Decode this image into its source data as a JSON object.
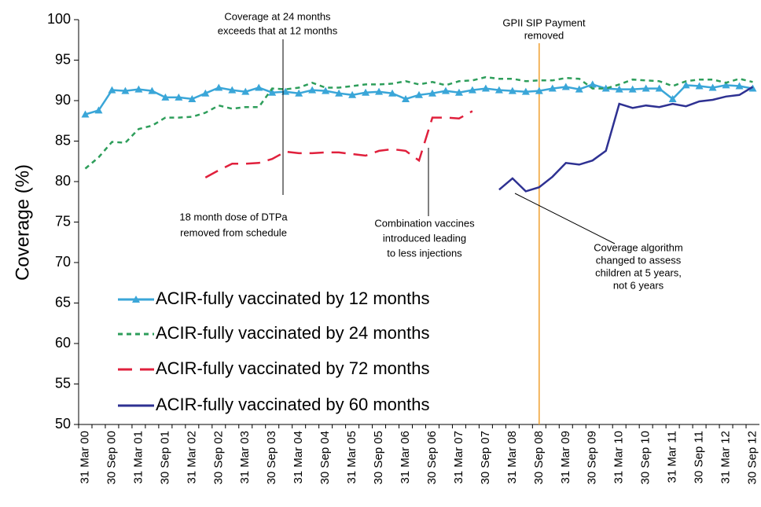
{
  "chart_data": {
    "type": "line",
    "y_label": "Coverage (%)",
    "ylim": [
      50,
      100
    ],
    "yticks": [
      50,
      55,
      60,
      65,
      70,
      75,
      80,
      85,
      90,
      95,
      100
    ],
    "grid": false,
    "legend": "lower left",
    "categories": [
      "31 Mar 00",
      null,
      "30 Sep 00",
      null,
      "31 Mar 01",
      null,
      "30 Sep 01",
      null,
      "31 Mar 02",
      null,
      "30 Sep 02",
      null,
      "31 Mar 03",
      null,
      "30 Sep 03",
      null,
      "31 Mar 04",
      null,
      "30 Sep 04",
      null,
      "31 Mar 05",
      null,
      "30 Sep 05",
      null,
      "31 Mar 06",
      null,
      "30 Sep 06",
      null,
      "31 Mar 07",
      null,
      "30 Sep 07",
      null,
      "31 Mar 08",
      null,
      "30 Sep 08",
      null,
      "31 Mar 09",
      null,
      "30 Sep 09",
      null,
      "31 Mar 10",
      null,
      "30 Sep 10",
      null,
      "31 Mar 11",
      null,
      "30 Sep 11",
      null,
      "31 Mar 12",
      null,
      "30 Sep 12"
    ],
    "series": [
      {
        "name": "ACIR-fully vaccinated by 12 months",
        "color": "#3aa6d8",
        "dash": "none",
        "marker": "triangle",
        "values": [
          88.3,
          88.8,
          91.3,
          91.2,
          91.4,
          91.2,
          90.4,
          90.4,
          90.2,
          90.9,
          91.6,
          91.3,
          91.1,
          91.6,
          91.0,
          91.1,
          90.9,
          91.3,
          91.2,
          90.9,
          90.7,
          91.0,
          91.1,
          90.9,
          90.2,
          90.7,
          90.9,
          91.2,
          91.0,
          91.3,
          91.5,
          91.3,
          91.2,
          91.1,
          91.2,
          91.5,
          91.7,
          91.4,
          92.0,
          91.5,
          91.4,
          91.4,
          91.5,
          91.5,
          90.2,
          91.9,
          91.8,
          91.6,
          91.9,
          91.8,
          91.5
        ]
      },
      {
        "name": "ACIR-fully vaccinated by 24 months",
        "color": "#2e9e5b",
        "dash": "6 5",
        "marker": "none",
        "values": [
          81.6,
          83.0,
          84.9,
          84.8,
          86.5,
          86.9,
          87.9,
          87.9,
          88.0,
          88.5,
          89.4,
          89.0,
          89.2,
          89.2,
          91.5,
          91.4,
          91.6,
          92.2,
          91.6,
          91.6,
          91.8,
          92.0,
          92.0,
          92.1,
          92.4,
          92.0,
          92.3,
          91.9,
          92.4,
          92.5,
          92.9,
          92.7,
          92.7,
          92.4,
          92.5,
          92.5,
          92.8,
          92.7,
          91.5,
          91.5,
          92.0,
          92.6,
          92.5,
          92.4,
          91.8,
          92.4,
          92.6,
          92.6,
          92.2,
          92.7,
          92.3
        ]
      },
      {
        "name": "ACIR-fully vaccinated by 72 months",
        "color": "#e0203c",
        "dash": "18 10",
        "marker": "none",
        "values": [
          null,
          null,
          null,
          null,
          null,
          null,
          null,
          null,
          null,
          80.5,
          81.4,
          82.2,
          82.2,
          82.3,
          82.8,
          83.7,
          83.5,
          83.5,
          83.6,
          83.6,
          83.4,
          83.2,
          83.8,
          84.0,
          83.8,
          82.6,
          87.9,
          87.9,
          87.8,
          88.7,
          null,
          null,
          null,
          null,
          null,
          null,
          null,
          null,
          null,
          null,
          null,
          null,
          null,
          null,
          null,
          null,
          null,
          null,
          null,
          null,
          null
        ]
      },
      {
        "name": "ACIR-fully vaccinated by 60 months",
        "color": "#2e3192",
        "dash": "none",
        "marker": "none",
        "values": [
          null,
          null,
          null,
          null,
          null,
          null,
          null,
          null,
          null,
          null,
          null,
          null,
          null,
          null,
          null,
          null,
          null,
          null,
          null,
          null,
          null,
          null,
          null,
          null,
          null,
          null,
          null,
          null,
          null,
          null,
          null,
          79.0,
          80.4,
          78.8,
          79.3,
          80.6,
          82.3,
          82.1,
          82.6,
          83.8,
          89.6,
          89.1,
          89.4,
          89.2,
          89.6,
          89.3,
          89.9,
          90.1,
          90.5,
          90.7,
          91.7
        ]
      }
    ],
    "annotations": [
      {
        "text": [
          "Coverage at 24 months",
          "exceeds that at 12 months"
        ]
      },
      {
        "text": [
          "18 month dose of DTPa",
          "removed from schedule"
        ]
      },
      {
        "text": [
          "Combination vaccines",
          "introduced leading",
          "to less injections"
        ]
      },
      {
        "text": [
          "GPII SIP Payment",
          "removed"
        ],
        "x": "30 Sep 08",
        "color": "#f0a030"
      },
      {
        "text": [
          "Coverage algorithm",
          "changed to assess",
          "children at 5 years,",
          "not 6  years"
        ]
      }
    ]
  }
}
